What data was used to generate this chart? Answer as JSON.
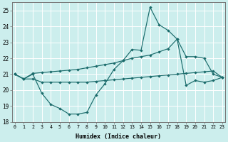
{
  "xlabel": "Humidex (Indice chaleur)",
  "background_color": "#cceeed",
  "grid_color": "#ffffff",
  "line_color": "#1a6b6b",
  "xlim": [
    0,
    23
  ],
  "ylim": [
    18,
    25.5
  ],
  "xticks": [
    0,
    1,
    2,
    3,
    4,
    5,
    6,
    7,
    8,
    9,
    10,
    11,
    12,
    13,
    14,
    15,
    16,
    17,
    18,
    19,
    20,
    21,
    22,
    23
  ],
  "yticks": [
    18,
    19,
    20,
    21,
    22,
    23,
    24,
    25
  ],
  "line1_x": [
    0,
    1,
    2,
    3,
    4,
    5,
    6,
    7,
    8,
    9,
    10,
    11,
    12,
    13,
    14,
    15,
    16,
    17,
    18,
    19,
    20,
    21,
    22,
    23
  ],
  "line1_y": [
    21.0,
    20.7,
    21.0,
    19.8,
    19.1,
    18.85,
    18.5,
    18.5,
    18.6,
    19.7,
    20.4,
    21.3,
    21.85,
    22.55,
    22.5,
    25.2,
    24.1,
    23.75,
    23.2,
    20.3,
    20.6,
    20.5,
    20.6,
    20.8
  ],
  "line2_x": [
    0,
    1,
    2,
    3,
    4,
    5,
    6,
    7,
    8,
    9,
    10,
    11,
    12,
    13,
    14,
    15,
    16,
    17,
    18,
    19,
    20,
    21,
    22,
    23
  ],
  "line2_y": [
    21.0,
    20.7,
    21.05,
    21.1,
    21.15,
    21.2,
    21.25,
    21.3,
    21.4,
    21.5,
    21.6,
    21.7,
    21.85,
    22.0,
    22.1,
    22.2,
    22.4,
    22.6,
    23.2,
    22.1,
    22.1,
    22.0,
    21.0,
    20.8
  ],
  "line3_x": [
    0,
    1,
    2,
    3,
    4,
    5,
    6,
    7,
    8,
    9,
    10,
    11,
    12,
    13,
    14,
    15,
    16,
    17,
    18,
    19,
    20,
    21,
    22,
    23
  ],
  "line3_y": [
    21.0,
    20.7,
    20.7,
    20.5,
    20.5,
    20.5,
    20.5,
    20.5,
    20.5,
    20.55,
    20.6,
    20.65,
    20.7,
    20.75,
    20.8,
    20.85,
    20.9,
    20.95,
    21.0,
    21.05,
    21.1,
    21.15,
    21.2,
    20.8
  ]
}
